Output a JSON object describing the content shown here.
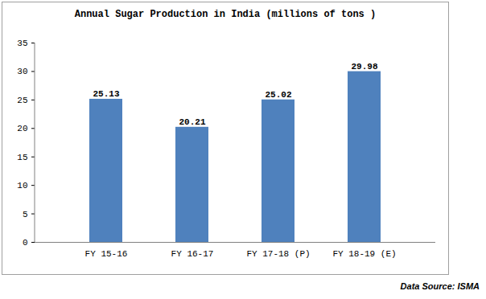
{
  "chart_data": {
    "type": "bar",
    "title": "Annual Sugar Production in India (millions of tons )",
    "categories": [
      "FY 15-16",
      "FY 16-17",
      "FY 17-18 (P)",
      "FY 18-19 (E)"
    ],
    "values": [
      25.13,
      20.21,
      25.02,
      29.98
    ],
    "color": "#4f81bd",
    "ylim": [
      0,
      35
    ],
    "yticks": [
      0,
      5,
      10,
      15,
      20,
      25,
      30,
      35
    ],
    "grid": false,
    "data_labels": true,
    "caption": "Data Source: ISMA"
  }
}
